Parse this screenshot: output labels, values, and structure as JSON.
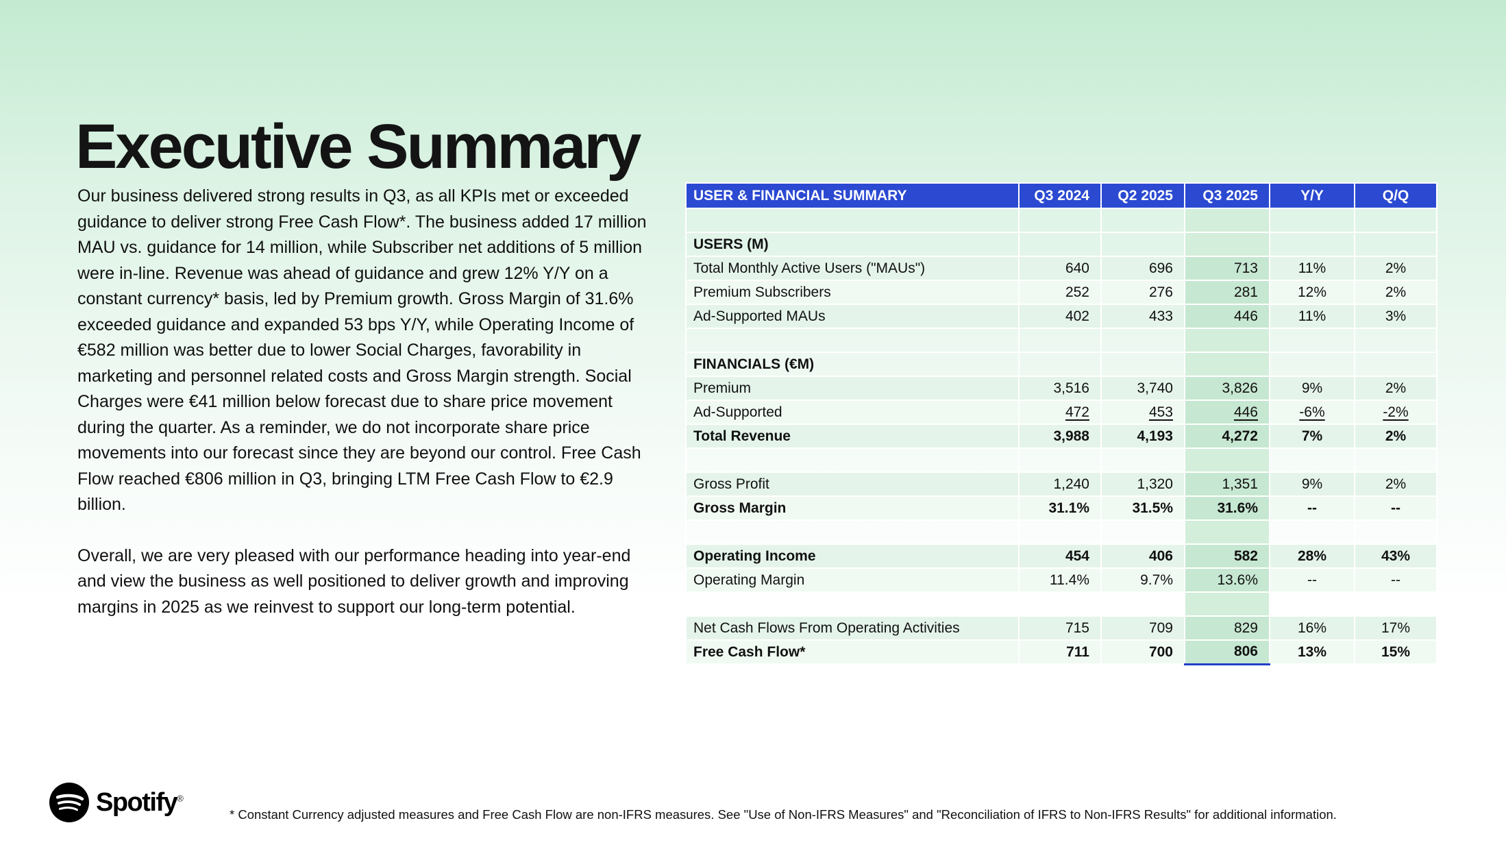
{
  "slide": {
    "title": "Executive Summary",
    "paragraphs": {
      "p1": "Our business delivered strong results in Q3, as all KPIs met or exceeded guidance to deliver strong Free Cash Flow*. The business added 17 million MAU vs. guidance for 14 million, while Subscriber net additions of 5 million were in-line. Revenue was ahead of guidance and grew 12% Y/Y on a constant currency* basis, led by Premium growth. Gross Margin of 31.6% exceeded guidance and expanded 53 bps Y/Y, while Operating Income of €582 million was better due to lower Social Charges, favorability in marketing and personnel related costs and Gross Margin strength. Social Charges were €41 million below forecast due to share price movement during the quarter. As a reminder, we do not incorporate share price movements into our forecast since they are beyond our control. Free Cash Flow reached €806 million in Q3, bringing LTM Free Cash Flow to €2.9 billion.",
      "p2": "Overall, we are very pleased with our performance heading into year-end and view the business as well positioned to deliver growth and improving margins in 2025 as we reinvest to support our long-term potential."
    },
    "footnote": "* Constant Currency adjusted measures and Free Cash Flow are non-IFRS measures. See \"Use of Non-IFRS Measures\" and \"Reconciliation of IFRS to Non-IFRS Results\" for additional information.",
    "logo": {
      "wordmark": "Spotify",
      "registered_mark": "®"
    }
  },
  "table": {
    "title": "USER & FINANCIAL SUMMARY",
    "columns": [
      "Q3 2024",
      "Q2 2025",
      "Q3 2025",
      "Y/Y",
      "Q/Q"
    ],
    "highlight_column": "Q3 2025",
    "rows": [
      {
        "type": "spacer"
      },
      {
        "type": "section",
        "label": "USERS (M)"
      },
      {
        "type": "data",
        "label": "Total Monthly Active Users (\"MAUs\")",
        "values": [
          "640",
          "696",
          "713",
          "11%",
          "2%"
        ],
        "shade": "a"
      },
      {
        "type": "data",
        "label": "Premium Subscribers",
        "values": [
          "252",
          "276",
          "281",
          "12%",
          "2%"
        ],
        "shade": "b"
      },
      {
        "type": "data",
        "label": "Ad-Supported MAUs",
        "values": [
          "402",
          "433",
          "446",
          "11%",
          "3%"
        ],
        "shade": "a"
      },
      {
        "type": "spacer"
      },
      {
        "type": "section",
        "label": "FINANCIALS (€M)"
      },
      {
        "type": "data",
        "label": "Premium",
        "values": [
          "3,516",
          "3,740",
          "3,826",
          "9%",
          "2%"
        ],
        "shade": "a"
      },
      {
        "type": "data",
        "label": "Ad-Supported",
        "values": [
          "472",
          "453",
          "446",
          "-6%",
          "-2%"
        ],
        "shade": "b",
        "underline": true
      },
      {
        "type": "data",
        "label": "Total Revenue",
        "values": [
          "3,988",
          "4,193",
          "4,272",
          "7%",
          "2%"
        ],
        "shade": "a",
        "bold": true
      },
      {
        "type": "spacer"
      },
      {
        "type": "data",
        "label": "Gross Profit",
        "values": [
          "1,240",
          "1,320",
          "1,351",
          "9%",
          "2%"
        ],
        "shade": "a"
      },
      {
        "type": "data",
        "label": "Gross Margin",
        "values": [
          "31.1%",
          "31.5%",
          "31.6%",
          "--",
          "--"
        ],
        "shade": "b",
        "bold": true
      },
      {
        "type": "spacer"
      },
      {
        "type": "data",
        "label": "Operating Income",
        "values": [
          "454",
          "406",
          "582",
          "28%",
          "43%"
        ],
        "shade": "a",
        "bold": true
      },
      {
        "type": "data",
        "label": "Operating Margin",
        "values": [
          "11.4%",
          "9.7%",
          "13.6%",
          "--",
          "--"
        ],
        "shade": "b"
      },
      {
        "type": "spacer"
      },
      {
        "type": "data",
        "label": "Net Cash Flows From Operating Activities",
        "values": [
          "715",
          "709",
          "829",
          "16%",
          "17%"
        ],
        "shade": "a"
      },
      {
        "type": "data",
        "label": "Free Cash Flow*",
        "values": [
          "711",
          "700",
          "806",
          "13%",
          "15%"
        ],
        "shade": "b",
        "bold": true
      }
    ]
  },
  "colors": {
    "header_blue": "#2B49D1",
    "highlight_border": "#2140C6",
    "row_green": "#E4F4EA",
    "row_green_alt": "#F0FAF3",
    "highlight_green": "#C6E7D1",
    "highlight_green_light": "#D3EEDB",
    "background_top": "#C3EBD1",
    "text_black": "#111111"
  }
}
